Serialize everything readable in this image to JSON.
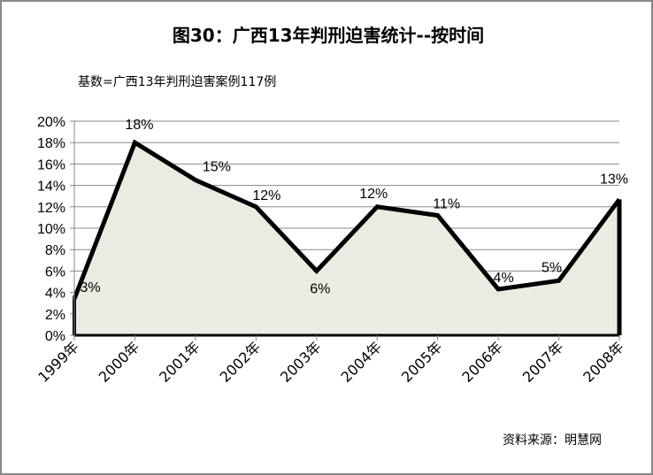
{
  "chart_data": {
    "type": "area",
    "title": "图30：广西13年判刑迫害统计--按时间",
    "subtitle": "基数=广西13年判刑迫害案例117例",
    "source": "资料来源：明慧网",
    "categories": [
      "1999年",
      "2000年",
      "2001年",
      "2002年",
      "2003年",
      "2004年",
      "2005年",
      "2006年",
      "2007年",
      "2008年"
    ],
    "values": [
      3.4,
      18,
      14.5,
      12,
      6,
      12,
      11.2,
      4.3,
      5.1,
      12.7
    ],
    "data_labels": [
      "3%",
      "18%",
      "15%",
      "12%",
      "6%",
      "12%",
      "11%",
      "4%",
      "5%",
      "13%"
    ],
    "yticks": [
      "0%",
      "2%",
      "4%",
      "6%",
      "8%",
      "10%",
      "12%",
      "14%",
      "16%",
      "18%",
      "20%"
    ],
    "ylim": [
      0,
      20
    ],
    "grid": true,
    "fill_color": "#ecebe1",
    "line_color": "#000000"
  }
}
